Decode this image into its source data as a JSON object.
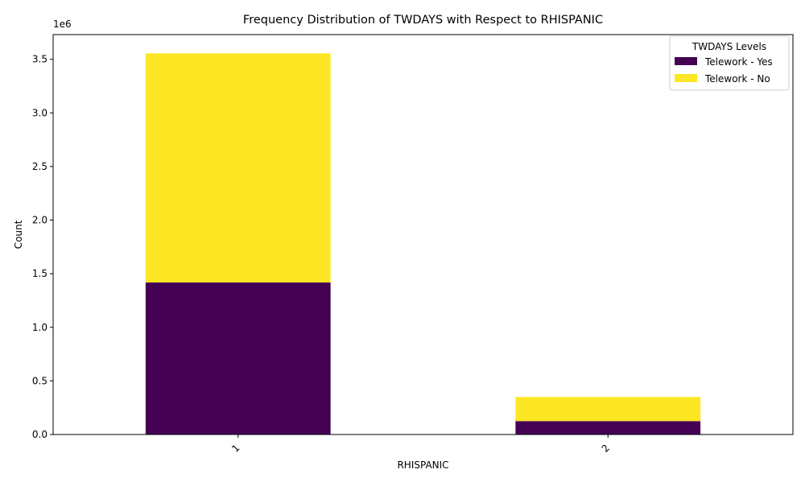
{
  "chart_data": {
    "type": "bar",
    "stacked": true,
    "title": "Frequency Distribution of TWDAYS with Respect to RHISPANIC",
    "xlabel": "RHISPANIC",
    "ylabel": "Count",
    "y_offset_label": "1e6",
    "categories": [
      "1",
      "2"
    ],
    "series": [
      {
        "name": "Telework - Yes",
        "color": "#440154",
        "values": [
          1418000,
          125000
        ]
      },
      {
        "name": "Telework - No",
        "color": "#fde725",
        "values": [
          2137000,
          225000
        ]
      }
    ],
    "ylim": [
      0,
      3730000
    ],
    "yticks": [
      0,
      500000,
      1000000,
      1500000,
      2000000,
      2500000,
      3000000,
      3500000
    ],
    "ytick_labels": [
      "0.0",
      "0.5",
      "1.0",
      "1.5",
      "2.0",
      "2.5",
      "3.0",
      "3.5"
    ],
    "legend": {
      "title": "TWDAYS Levels",
      "position": "top-right"
    },
    "grid": false
  }
}
